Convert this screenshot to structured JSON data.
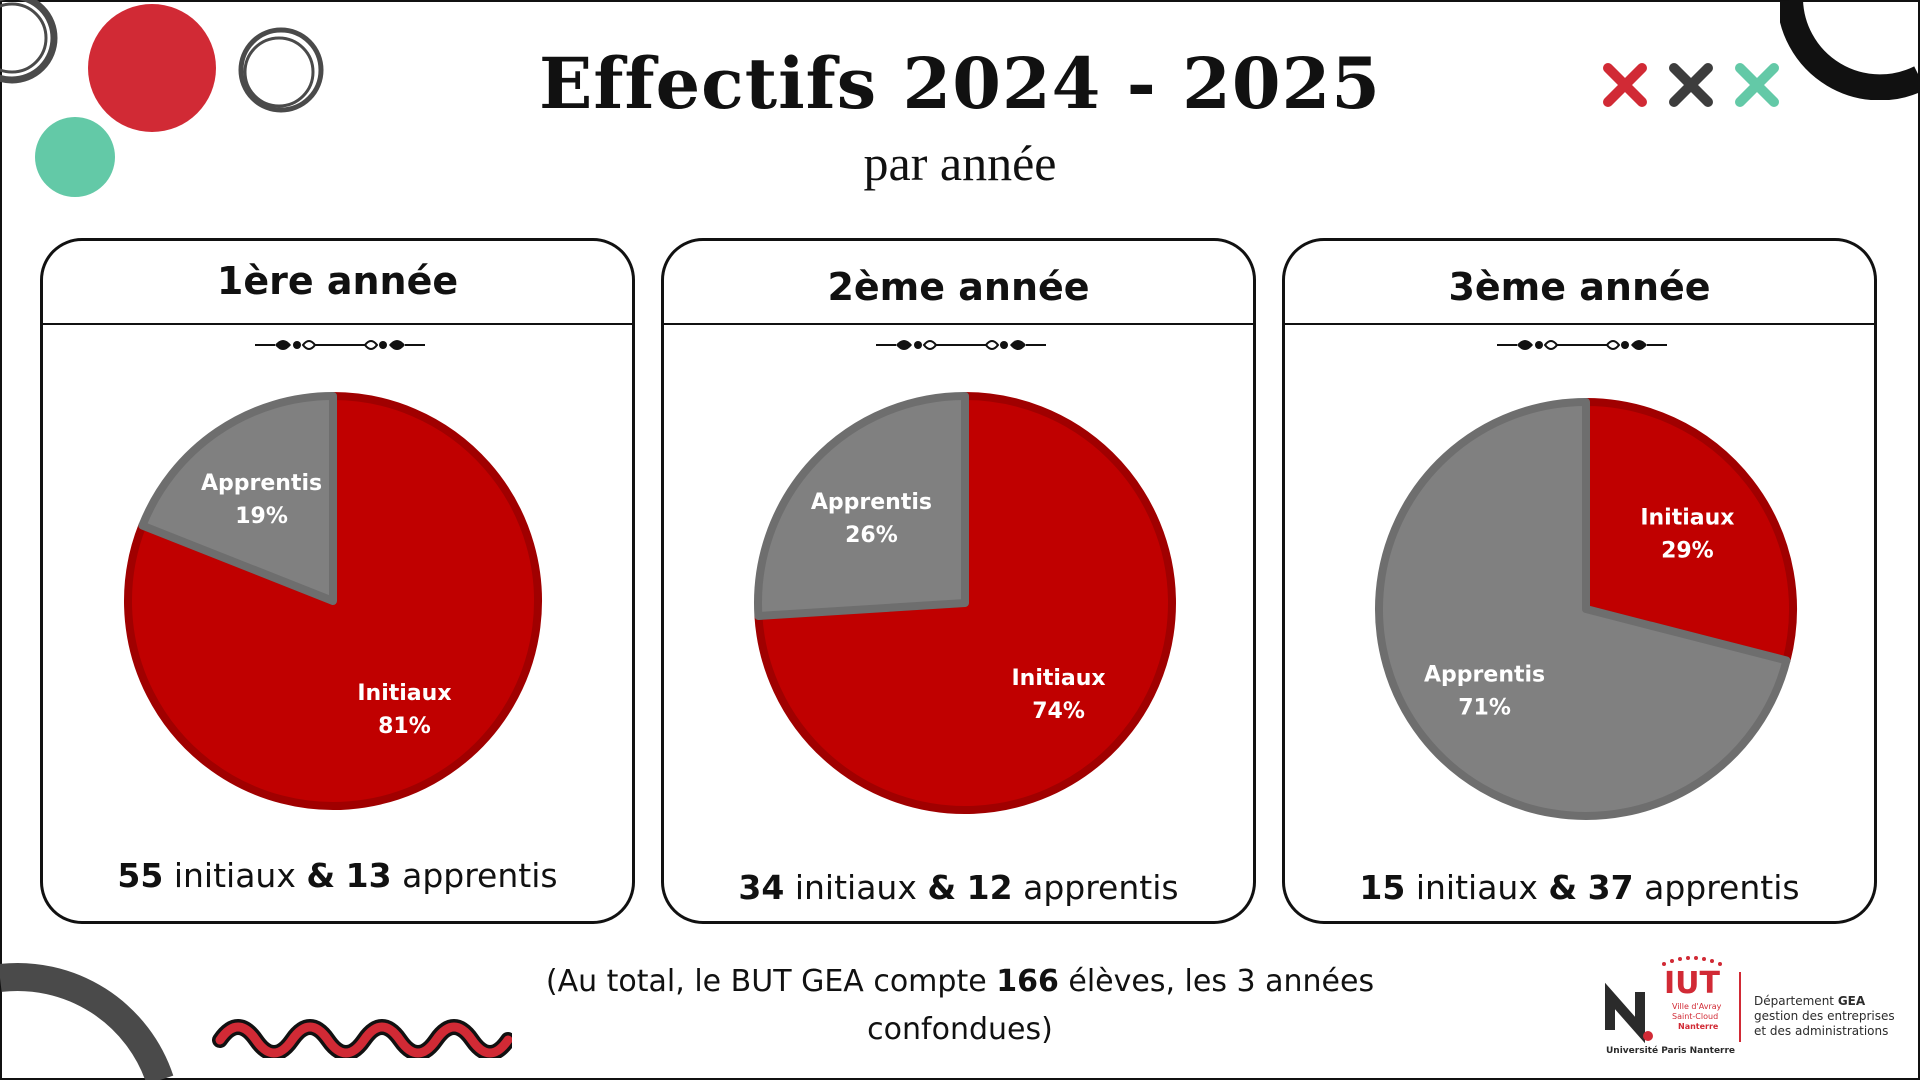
{
  "title": "Effectifs 2024 - 2025",
  "subtitle": "par année",
  "colors": {
    "initiaux": "#c00000",
    "apprentis": "#808080",
    "initiaux_border": "#a00000",
    "apprentis_border": "#6e6e6e"
  },
  "cards": [
    {
      "title": "1ère année",
      "initiaux": "55",
      "apprentis": "13",
      "label_initiaux": "initiaux",
      "label_apprentis": "apprentis",
      "amp": "&"
    },
    {
      "title": "2ème année",
      "initiaux": "34",
      "apprentis": "12",
      "label_initiaux": "initiaux",
      "label_apprentis": "apprentis",
      "amp": "&"
    },
    {
      "title": "3ème année",
      "initiaux": "15",
      "apprentis": "37",
      "label_initiaux": "initiaux",
      "label_apprentis": "apprentis",
      "amp": "&"
    }
  ],
  "chart_data": [
    {
      "type": "pie",
      "categories": [
        "Initiaux",
        "Apprentis"
      ],
      "values": [
        81,
        19
      ],
      "value_labels": [
        "81%",
        "19%"
      ]
    },
    {
      "type": "pie",
      "categories": [
        "Initiaux",
        "Apprentis"
      ],
      "values": [
        74,
        26
      ],
      "value_labels": [
        "74%",
        "26%"
      ]
    },
    {
      "type": "pie",
      "categories": [
        "Initiaux",
        "Apprentis"
      ],
      "values": [
        29,
        71
      ],
      "value_labels": [
        "29%",
        "71%"
      ]
    }
  ],
  "footer": {
    "prefix": "(Au total, le BUT GEA compte",
    "total": "166",
    "suffix": "élèves, les 3 années",
    "line2": "confondues)"
  },
  "logo": {
    "iut": "IUT",
    "iut_sub1": "Ville d'Avray",
    "iut_sub2": "Saint-Cloud",
    "iut_sub3": "Nanterre",
    "university": "Université Paris Nanterre",
    "dept_prefix": "Département",
    "dept_name": "GEA",
    "dept_line2": "gestion des entreprises",
    "dept_line3": "et des administrations"
  },
  "icons": [
    "close-icon-red",
    "close-icon-dark",
    "close-icon-green"
  ]
}
